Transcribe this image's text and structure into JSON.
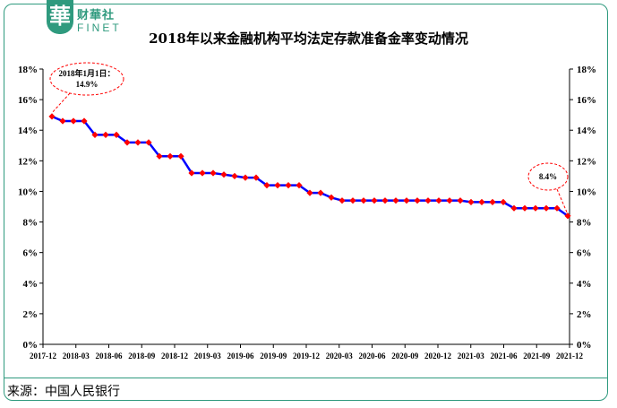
{
  "header": {
    "logo_mark": "華",
    "logo_cn": "财華社",
    "logo_en": "FINET"
  },
  "chart_data": {
    "type": "line",
    "title": "2018年以来金融机构平均法定存款准备金率变动情况",
    "ylim": [
      0,
      18
    ],
    "y_ticks": [
      "0%",
      "2%",
      "4%",
      "6%",
      "8%",
      "10%",
      "12%",
      "14%",
      "16%",
      "18%"
    ],
    "x_ticks": [
      "2017-12",
      "2018-03",
      "2018-06",
      "2018-09",
      "2018-12",
      "2019-03",
      "2019-06",
      "2019-09",
      "2019-12",
      "2020-03",
      "2020-06",
      "2020-09",
      "2020-12",
      "2021-03",
      "2021-06",
      "2021-09",
      "2021-12"
    ],
    "series": [
      {
        "color_line": "#0000ff",
        "color_marker": "#ff0000",
        "values": [
          14.9,
          14.6,
          14.6,
          14.6,
          13.7,
          13.7,
          13.7,
          13.2,
          13.2,
          13.2,
          12.3,
          12.3,
          12.3,
          11.2,
          11.2,
          11.2,
          11.1,
          11.0,
          10.9,
          10.9,
          10.4,
          10.4,
          10.4,
          10.4,
          9.9,
          9.9,
          9.6,
          9.4,
          9.4,
          9.4,
          9.4,
          9.4,
          9.4,
          9.4,
          9.4,
          9.4,
          9.4,
          9.4,
          9.4,
          9.3,
          9.3,
          9.3,
          9.3,
          8.9,
          8.9,
          8.9,
          8.9,
          8.9,
          8.4
        ]
      }
    ],
    "annotations": [
      {
        "line1": "2018年1月1日：",
        "line2": "14.9%"
      },
      {
        "line1": "8.4%"
      }
    ]
  },
  "footer": {
    "source": "来源：中国人民银行"
  }
}
